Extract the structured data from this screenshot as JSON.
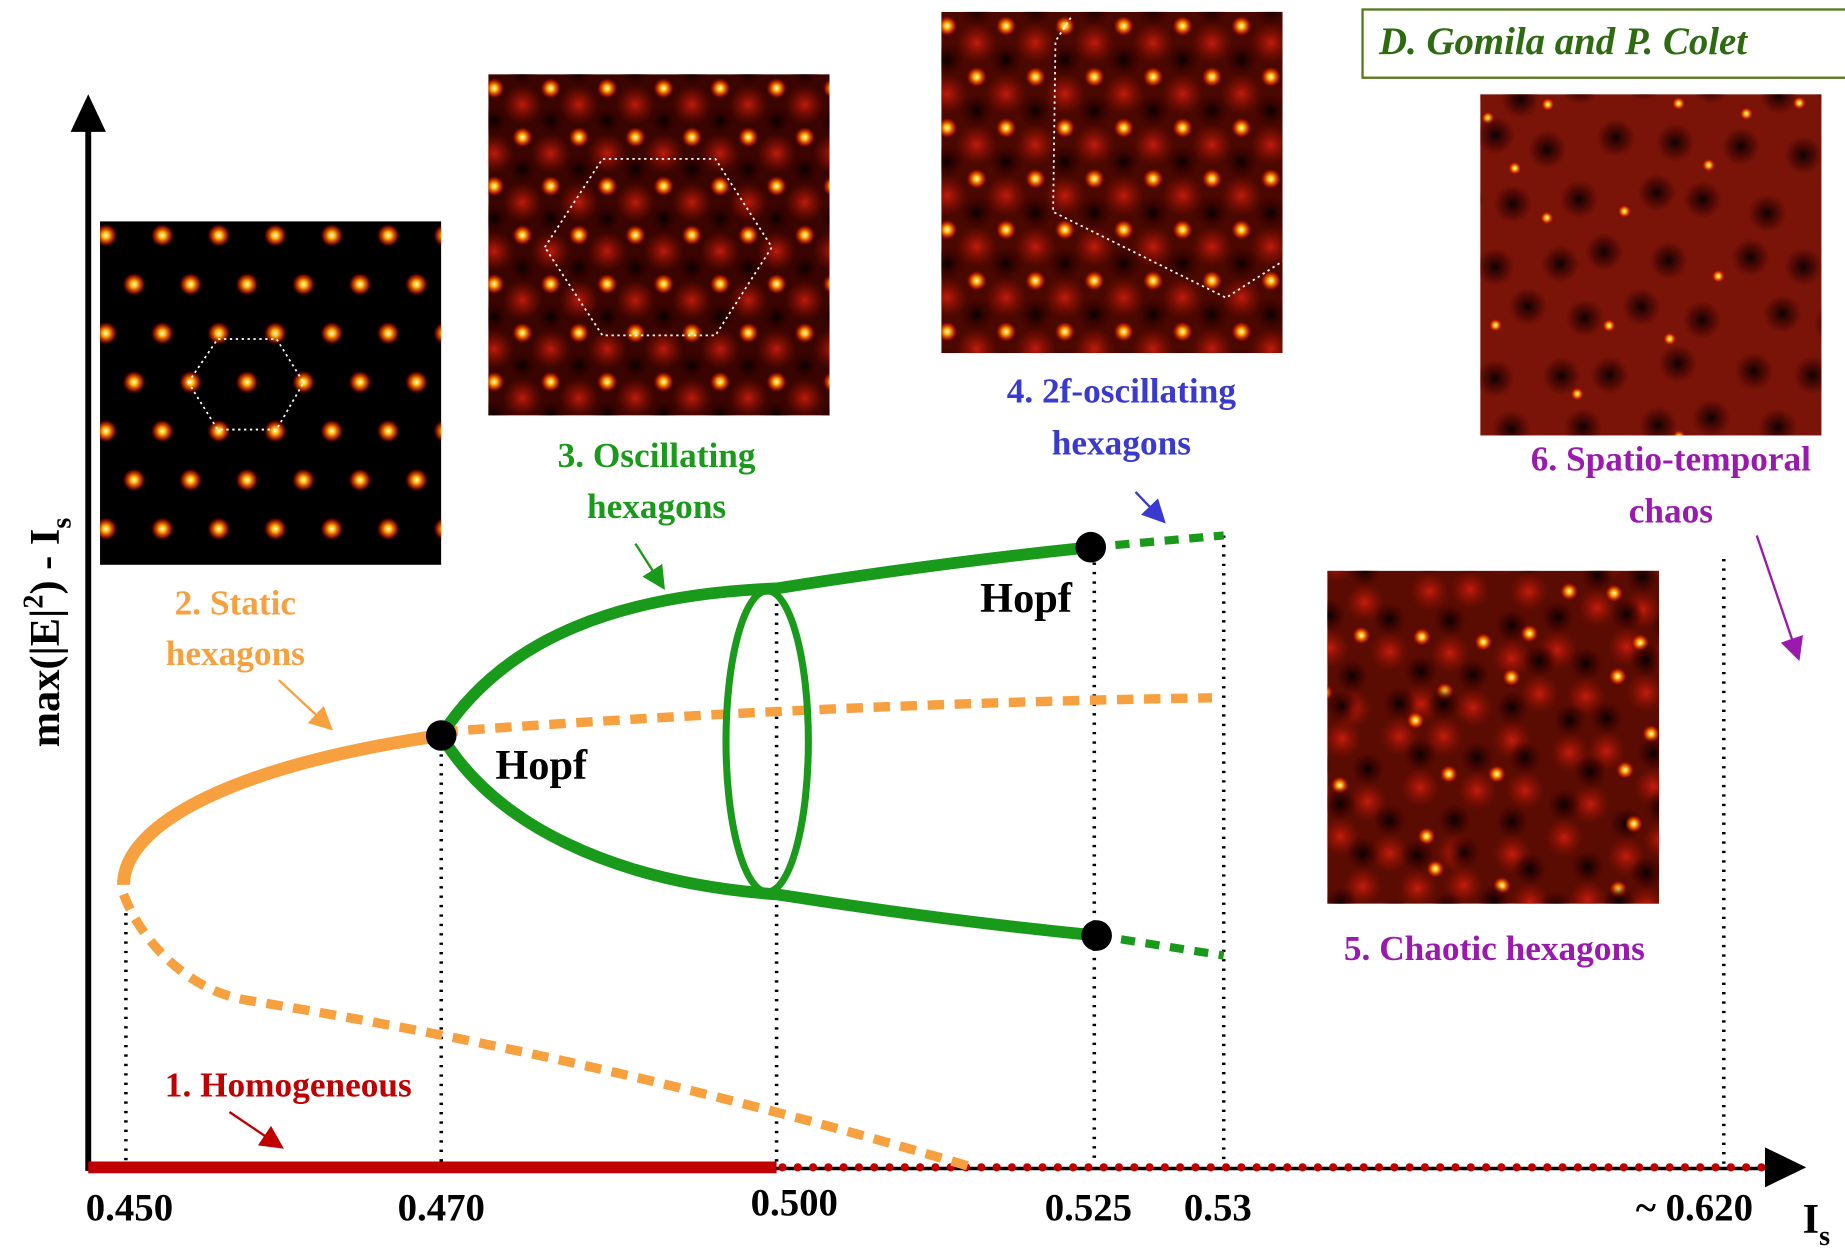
{
  "credit": "D. Gomila and P. Colet",
  "y_axis_label": [
    "max(|E|",
    "2",
    ") - I",
    "s"
  ],
  "x_axis_label": [
    "I",
    "s"
  ],
  "x_tick_labels": [
    "0.450",
    "0.470",
    "0.500",
    "0.525",
    "0.53",
    "~ 0.620"
  ],
  "bifurcations": [
    "Hopf",
    "Hopf"
  ],
  "regimes": [
    [
      "1. Homogeneous"
    ],
    [
      "2. Static",
      "hexagons"
    ],
    [
      "3. Oscillating",
      "hexagons"
    ],
    [
      "4. 2f-oscillating",
      "hexagons"
    ],
    [
      "5. Chaotic hexagons"
    ],
    [
      "6. Spatio-temporal",
      "chaos"
    ]
  ]
}
